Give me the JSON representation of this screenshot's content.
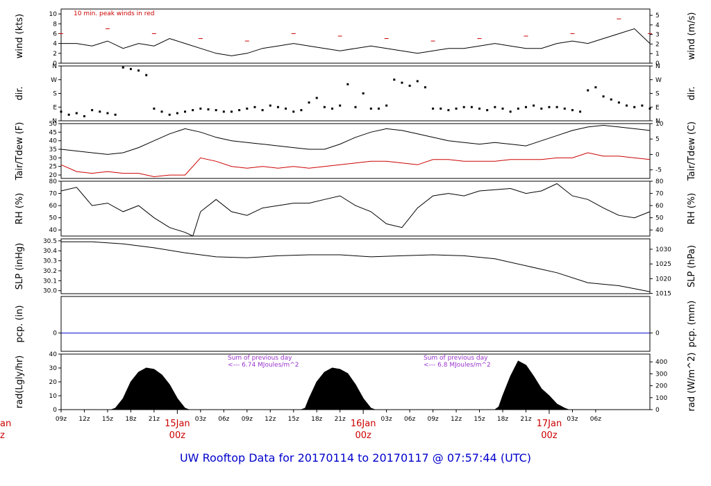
{
  "title": "UW Rooftop Data for 20170114  to  20170117 @ 07:57:44  (UTC)",
  "colors": {
    "wind_peak": "#cc0000",
    "tdew": "#cc0000",
    "pcp": "#0000cc",
    "title": "#0000cc",
    "annotation": "#9933cc"
  },
  "chart_data": [
    {
      "id": "wind",
      "type": "line",
      "ylabel": "wind (kts)",
      "ylabel_right": "wind (m/s)",
      "ylim": [
        0,
        11
      ],
      "yticks": [
        0,
        2,
        4,
        6,
        8,
        10
      ],
      "yticks_right": [
        0,
        1,
        2,
        3,
        4,
        5
      ],
      "right_scale_factor": 0.5144,
      "annotation": "10 min. peak winds in red",
      "series": [
        {
          "name": "",
          "x": [
            0,
            2,
            4,
            6,
            8,
            10,
            12,
            14,
            16,
            18,
            20,
            22,
            24,
            26,
            28,
            30,
            32,
            34,
            36,
            38,
            40,
            42,
            44,
            46,
            48,
            50,
            52,
            54,
            56,
            58,
            60,
            62,
            64,
            66,
            68,
            70,
            72,
            74,
            76
          ],
          "y": [
            4,
            4,
            3.5,
            4.5,
            3,
            4,
            3.5,
            5,
            4,
            3,
            2,
            1.5,
            2,
            3,
            3.5,
            4,
            3.5,
            3,
            2.5,
            3,
            3.5,
            3,
            2.5,
            2,
            2.5,
            3,
            3,
            3.5,
            4,
            3.5,
            3,
            3,
            4,
            4.5,
            4,
            5,
            6,
            7,
            4
          ]
        },
        {
          "name": "",
          "x": [
            0,
            6,
            12,
            18,
            24,
            30,
            36,
            42,
            48,
            54,
            60,
            66,
            72,
            76
          ],
          "y": [
            6,
            7,
            6,
            5,
            4.5,
            6,
            5.5,
            5,
            4.5,
            5,
            5.5,
            6,
            9,
            6
          ]
        }
      ]
    },
    {
      "id": "dir",
      "type": "scatter",
      "ylabel": "dir.",
      "ylabel_right": "dir.",
      "ylim": [
        0,
        360
      ],
      "ytick_labels": [
        "N",
        "E",
        "S",
        "W",
        "N"
      ],
      "series": [
        {
          "name": "",
          "x": [
            0,
            1,
            2,
            3,
            4,
            5,
            6,
            7,
            8,
            9,
            10,
            11,
            12,
            13,
            14,
            15,
            16,
            17,
            18,
            19,
            20,
            21,
            22,
            23,
            24,
            25,
            26,
            27,
            28,
            29,
            30,
            31,
            32,
            33,
            34,
            35,
            36,
            37,
            38,
            39,
            40,
            41,
            42,
            43,
            44,
            45,
            46,
            47,
            48,
            49,
            50,
            51,
            52,
            53,
            54,
            55,
            56,
            57,
            58,
            59,
            60,
            61,
            62,
            63,
            64,
            65,
            66,
            67,
            68,
            69,
            70,
            71,
            72,
            73,
            74,
            75,
            76
          ],
          "y": [
            60,
            40,
            50,
            30,
            70,
            60,
            50,
            40,
            350,
            340,
            330,
            300,
            80,
            60,
            40,
            50,
            60,
            70,
            80,
            75,
            70,
            60,
            60,
            70,
            80,
            90,
            70,
            100,
            90,
            80,
            60,
            70,
            120,
            150,
            90,
            80,
            100,
            240,
            90,
            180,
            80,
            80,
            100,
            270,
            250,
            230,
            260,
            220,
            80,
            80,
            70,
            80,
            90,
            90,
            80,
            70,
            90,
            80,
            60,
            80,
            90,
            100,
            80,
            90,
            90,
            80,
            70,
            60,
            200,
            220,
            160,
            140,
            120,
            100,
            90,
            100,
            80
          ]
        }
      ]
    },
    {
      "id": "temp",
      "type": "line",
      "ylabel": "Tair/Tdew (F)",
      "ylabel_right": "Tair/Tdew (C)",
      "ylim": [
        18,
        50
      ],
      "yticks": [
        20,
        25,
        30,
        35,
        40,
        45,
        50
      ],
      "yticks_right": [
        -5,
        0,
        5,
        10
      ],
      "series": [
        {
          "name": "",
          "x": [
            0,
            2,
            4,
            6,
            8,
            10,
            12,
            14,
            16,
            18,
            20,
            22,
            24,
            26,
            28,
            30,
            32,
            34,
            36,
            38,
            40,
            42,
            44,
            46,
            48,
            50,
            52,
            54,
            56,
            58,
            60,
            62,
            64,
            66,
            68,
            70,
            72,
            74,
            76
          ],
          "y": [
            35,
            34,
            33,
            32,
            33,
            36,
            40,
            44,
            47,
            45,
            42,
            40,
            39,
            38,
            37,
            36,
            35,
            35,
            38,
            42,
            45,
            47,
            46,
            44,
            42,
            40,
            39,
            38,
            39,
            38,
            37,
            40,
            43,
            46,
            48,
            49,
            48,
            47,
            46
          ]
        },
        {
          "name": "",
          "x": [
            0,
            2,
            4,
            6,
            8,
            10,
            12,
            14,
            16,
            18,
            20,
            22,
            24,
            26,
            28,
            30,
            32,
            34,
            36,
            38,
            40,
            42,
            44,
            46,
            48,
            50,
            52,
            54,
            56,
            58,
            60,
            62,
            64,
            66,
            68,
            70,
            72,
            74,
            76
          ],
          "y": [
            26,
            22,
            21,
            22,
            21,
            21,
            19,
            20,
            20,
            30,
            28,
            25,
            24,
            25,
            24,
            25,
            24,
            25,
            26,
            27,
            28,
            28,
            27,
            26,
            29,
            29,
            28,
            28,
            28,
            29,
            29,
            29,
            30,
            30,
            33,
            31,
            31,
            30,
            29
          ]
        }
      ]
    },
    {
      "id": "rh",
      "type": "line",
      "ylabel": "RH (%)",
      "ylabel_right": "RH (%)",
      "ylim": [
        35,
        80
      ],
      "yticks": [
        40,
        50,
        60,
        70,
        80
      ],
      "yticks_right": [
        40,
        50,
        60,
        70,
        80
      ],
      "series": [
        {
          "name": "",
          "x": [
            0,
            2,
            4,
            6,
            8,
            10,
            12,
            14,
            16,
            17,
            18,
            20,
            22,
            24,
            26,
            28,
            30,
            32,
            34,
            36,
            38,
            40,
            42,
            44,
            46,
            48,
            50,
            52,
            54,
            56,
            58,
            60,
            62,
            64,
            66,
            68,
            70,
            72,
            74,
            76
          ],
          "y": [
            72,
            75,
            60,
            62,
            55,
            60,
            50,
            42,
            38,
            35,
            55,
            65,
            55,
            52,
            58,
            60,
            62,
            62,
            65,
            68,
            60,
            55,
            45,
            42,
            58,
            68,
            70,
            68,
            72,
            73,
            74,
            70,
            72,
            78,
            68,
            65,
            58,
            52,
            50,
            55
          ]
        }
      ]
    },
    {
      "id": "slp",
      "type": "line",
      "ylabel": "SLP (inHg)",
      "ylabel_right": "SLP (hPa)",
      "ylim": [
        29.97,
        30.52
      ],
      "yticks": [
        30.0,
        30.1,
        30.2,
        30.3,
        30.4,
        30.5
      ],
      "ytick_labels": [
        "30.0",
        "30.1",
        "30.2",
        "30.3",
        "30.4",
        "30.5"
      ],
      "yticks_right": [
        1015,
        1020,
        1025,
        1030
      ],
      "series": [
        {
          "name": "",
          "x": [
            0,
            4,
            8,
            12,
            16,
            20,
            24,
            28,
            32,
            36,
            40,
            44,
            48,
            52,
            56,
            60,
            64,
            68,
            72,
            76
          ],
          "y": [
            30.49,
            30.49,
            30.47,
            30.43,
            30.38,
            30.34,
            30.33,
            30.35,
            30.36,
            30.36,
            30.34,
            30.35,
            30.36,
            30.35,
            30.32,
            30.25,
            30.18,
            30.08,
            30.05,
            29.99
          ]
        }
      ]
    },
    {
      "id": "pcp",
      "type": "line",
      "ylabel": "pcp. (in)",
      "ylabel_right": "pcp. (mm)",
      "ylim": [
        -0.5,
        1
      ],
      "yticks": [
        0
      ],
      "yticks_right": [
        0
      ],
      "series": [
        {
          "name": "",
          "x": [
            0,
            76
          ],
          "y": [
            0,
            0
          ]
        }
      ]
    },
    {
      "id": "rad",
      "type": "area",
      "ylabel": "rad(Lgly/hr)",
      "ylabel_right": "rad (W/m^2)",
      "ylim": [
        0,
        40
      ],
      "yticks": [
        0,
        10,
        20,
        30,
        40
      ],
      "yticks_right": [
        0,
        100,
        200,
        300,
        400
      ],
      "right_scale_factor": 11.63,
      "annotations": [
        "Sum of previous day",
        "<--- 6.74 MJoules/m^2",
        "Sum of previous day",
        "<--- 6.8 MJoules/m^2"
      ],
      "series": [
        {
          "name": "",
          "x": [
            6.5,
            7,
            8,
            9,
            10,
            11,
            12,
            13,
            14,
            15,
            16,
            16.5,
            31,
            31.5,
            32,
            33,
            34,
            35,
            36,
            37,
            38,
            39,
            40,
            40.5,
            56,
            56.5,
            57,
            58,
            59,
            60,
            61,
            62,
            63,
            64,
            65,
            65.5
          ],
          "y": [
            0,
            1,
            8,
            20,
            27,
            30,
            29,
            25,
            18,
            8,
            1,
            0,
            0,
            1,
            8,
            20,
            27,
            30,
            29,
            26,
            18,
            8,
            1,
            0,
            0,
            2,
            10,
            24,
            35,
            32,
            24,
            15,
            10,
            4,
            1,
            0
          ]
        }
      ]
    }
  ],
  "x_axis": {
    "xlim": [
      0,
      76
    ],
    "ticks": [
      {
        "x": 0,
        "label": "09z"
      },
      {
        "x": 3,
        "label": "12z"
      },
      {
        "x": 6,
        "label": "15z"
      },
      {
        "x": 9,
        "label": "18z"
      },
      {
        "x": 12,
        "label": "21z"
      },
      {
        "x": 18,
        "label": "03z"
      },
      {
        "x": 21,
        "label": "06z"
      },
      {
        "x": 24,
        "label": "09z"
      },
      {
        "x": 27,
        "label": "12z"
      },
      {
        "x": 30,
        "label": "15z"
      },
      {
        "x": 33,
        "label": "18z"
      },
      {
        "x": 36,
        "label": "21z"
      },
      {
        "x": 42,
        "label": "03z"
      },
      {
        "x": 45,
        "label": "06z"
      },
      {
        "x": 48,
        "label": "09z"
      },
      {
        "x": 51,
        "label": "12z"
      },
      {
        "x": 54,
        "label": "15z"
      },
      {
        "x": 57,
        "label": "18z"
      },
      {
        "x": 60,
        "label": "21z"
      },
      {
        "x": 66,
        "label": "03z"
      },
      {
        "x": 69,
        "label": "06z"
      }
    ],
    "day_labels": [
      {
        "x": 15,
        "date": "15Jan",
        "hour": "00z"
      },
      {
        "x": 39,
        "date": "16Jan",
        "hour": "00z"
      },
      {
        "x": 63,
        "date": "17Jan",
        "hour": "00z"
      }
    ],
    "left_fragment": {
      "date": "an",
      "hour": "z"
    }
  }
}
